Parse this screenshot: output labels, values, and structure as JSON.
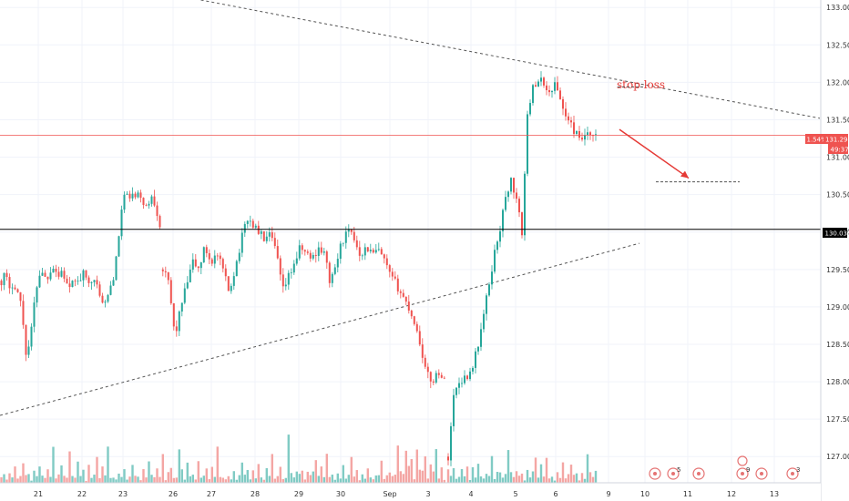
{
  "chart_data": {
    "type": "candlestick",
    "symbol_hint": "",
    "colors": {
      "up": "#26a69a",
      "down": "#ef5350",
      "up_volume": "#80cbc4",
      "down_volume": "#f4a6a4",
      "grid": "#f0f3fa",
      "price_line": "#ef5350",
      "level_line": "#000000",
      "trendline": "#555555",
      "annotation": "#e53935"
    },
    "ylim": [
      126.65,
      133.1
    ],
    "y_ticks": [
      127.0,
      127.5,
      128.0,
      128.5,
      129.0,
      129.5,
      130.0,
      130.5,
      131.0,
      131.5,
      132.0,
      132.5,
      133.0
    ],
    "y_tick_labels": [
      "127.000",
      "127.500",
      "128.000",
      "128.500",
      "129.000",
      "129.500",
      "130.000",
      "130.500",
      "131.000",
      "131.500",
      "132.000",
      "132.500",
      "133.000"
    ],
    "x_tick_labels": [
      "21",
      "22",
      "23",
      "26",
      "27",
      "28",
      "29",
      "30",
      "Sep",
      "3",
      "4",
      "5",
      "6",
      "9",
      "10",
      "11",
      "12",
      "13"
    ],
    "current_price": {
      "label": "131.294",
      "value": 131.294,
      "change_label": "1.54%",
      "countdown": "49:37"
    },
    "level": {
      "label": "130.036",
      "value": 130.036
    },
    "annotations": [
      {
        "text": "stop loss",
        "price": 131.95
      }
    ],
    "target_level": 130.67,
    "trendlines": [
      {
        "name": "upper",
        "points": [
          [
            0.245,
            133.1
          ],
          [
            1.0,
            131.52
          ]
        ]
      },
      {
        "name": "lower",
        "points": [
          [
            0.0,
            127.55
          ],
          [
            0.78,
            129.85
          ]
        ]
      }
    ],
    "segments": [
      [
        129.35,
        129.45,
        129.2,
        129.35,
        129.2,
        129.0,
        128.4,
        128.5,
        129.0,
        129.4,
        129.5,
        129.35,
        129.5,
        129.55,
        129.4,
        129.5,
        129.3,
        129.2,
        129.4,
        129.3,
        129.45,
        129.35,
        129.4,
        129.3,
        129.25,
        129.0,
        129.1,
        129.3,
        129.5,
        130.0,
        130.5,
        130.45,
        130.5,
        130.45,
        130.5,
        130.4,
        130.3,
        130.5,
        130.35,
        130.1
      ],
      [
        129.5,
        129.3,
        128.6,
        129.0,
        129.3,
        129.6,
        129.5,
        129.8,
        129.6,
        129.7,
        129.5,
        129.2,
        129.5,
        129.85,
        130.2,
        130.1,
        130.0,
        129.9,
        129.95,
        129.7,
        129.2,
        129.4,
        129.6,
        129.8,
        129.7,
        129.65,
        129.8,
        129.7,
        129.3,
        129.6,
        129.9,
        130.0,
        129.9,
        129.7,
        129.8,
        129.7,
        129.75,
        129.6,
        129.4,
        129.3,
        129.15,
        129.0,
        128.8,
        128.5,
        128.1,
        128.0,
        128.15,
        128.0
      ],
      [
        127.0,
        127.8,
        128.0,
        128.05,
        128.1,
        128.3,
        128.6,
        129.0,
        129.4,
        129.8,
        130.1,
        130.5,
        130.7,
        130.4,
        130.0,
        131.5,
        132.0,
        131.95,
        132.05,
        131.8,
        132.0,
        131.85,
        131.6,
        131.45,
        131.35,
        131.2,
        131.3,
        131.25,
        131.29
      ]
    ],
    "volume_pattern": [
      5,
      9,
      3,
      12,
      6,
      18,
      4,
      8,
      22,
      7,
      11,
      3,
      15,
      6,
      26,
      9,
      5,
      13,
      7,
      31,
      4,
      10,
      17,
      6,
      8,
      42,
      12,
      5,
      20,
      9,
      14,
      3,
      19,
      7,
      11,
      24,
      6,
      16,
      8,
      35
    ],
    "economic_events": [
      {
        "count": ""
      },
      {
        "count": "5"
      },
      {
        "count": ""
      },
      {
        "count": "9"
      },
      {
        "count": ""
      },
      {
        "count": "3"
      }
    ]
  }
}
